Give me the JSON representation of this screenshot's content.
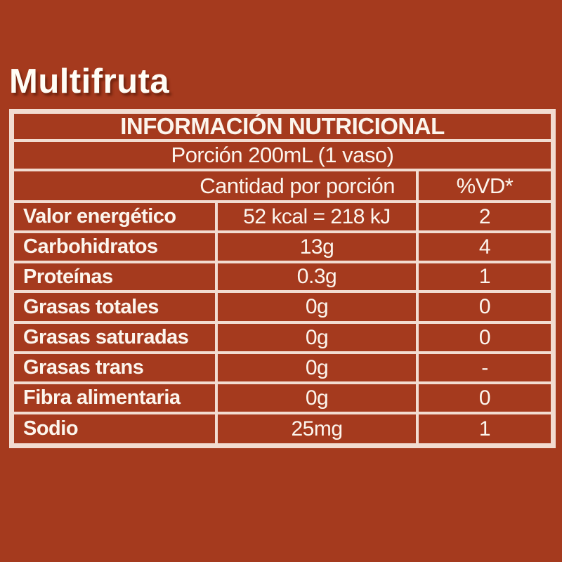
{
  "colors": {
    "background": "#A53A1E",
    "grid_cream": "#F2DCD1",
    "text": "#FCF5ED",
    "title_text": "#FFFDF6"
  },
  "title": "Multifruta",
  "table": {
    "header": "INFORMACIÓN NUTRICIONAL",
    "portion": "Porción 200mL (1 vaso)",
    "amount_header": "Cantidad por porción",
    "dv_header": "%VD*",
    "rows": [
      {
        "label": "Valor energético",
        "amount": "52 kcal = 218 kJ",
        "dv": "2"
      },
      {
        "label": "Carbohidratos",
        "amount": "13g",
        "dv": "4"
      },
      {
        "label": "Proteínas",
        "amount": "0.3g",
        "dv": "1"
      },
      {
        "label": "Grasas totales",
        "amount": "0g",
        "dv": "0"
      },
      {
        "label": "Grasas saturadas",
        "amount": "0g",
        "dv": "0"
      },
      {
        "label": "Grasas trans",
        "amount": "0g",
        "dv": "-"
      },
      {
        "label": "Fibra alimentaria",
        "amount": "0g",
        "dv": "0"
      },
      {
        "label": "Sodio",
        "amount": "25mg",
        "dv": "1"
      }
    ]
  }
}
